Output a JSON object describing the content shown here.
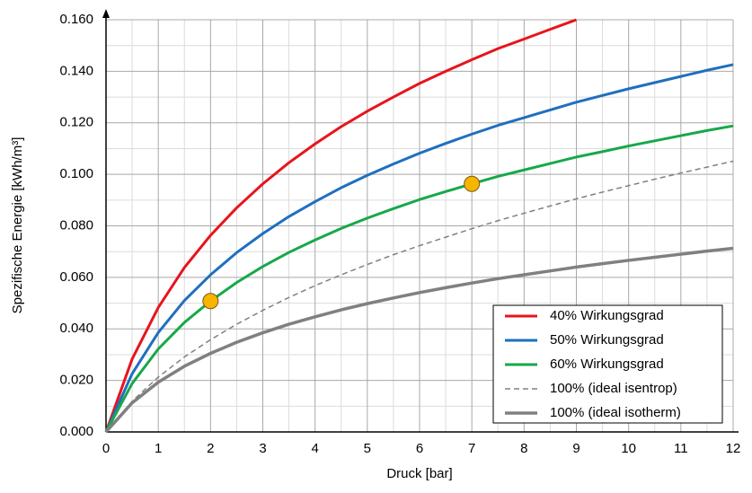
{
  "chart_data": {
    "type": "line",
    "x_label": "Druck [bar]",
    "y_label": "Spezifische Energie [kWh/m³]",
    "x": [
      0,
      0.5,
      1,
      1.5,
      2,
      2.5,
      3,
      3.5,
      4,
      4.5,
      5,
      5.5,
      6,
      6.5,
      7,
      7.5,
      8,
      8.5,
      9,
      9.5,
      10,
      10.5,
      11,
      11.5,
      12
    ],
    "series": [
      {
        "name": "40% Wirkungsgrad",
        "color": "#e8141c",
        "width": 3,
        "dashed": false,
        "values": [
          0,
          0.0283,
          0.0483,
          0.0638,
          0.0763,
          0.087,
          0.0963,
          0.1045,
          0.1118,
          0.1185,
          0.1245,
          0.13,
          0.1353,
          0.14,
          0.1445,
          0.1488,
          0.1525,
          0.1563,
          0.16,
          null,
          null,
          null,
          null,
          null,
          null
        ]
      },
      {
        "name": "50% Wirkungsgrad",
        "color": "#1f6fbf",
        "width": 3,
        "dashed": false,
        "values": [
          0,
          0.0226,
          0.0386,
          0.051,
          0.061,
          0.0696,
          0.077,
          0.0836,
          0.0894,
          0.0948,
          0.0996,
          0.104,
          0.1082,
          0.112,
          0.1156,
          0.119,
          0.122,
          0.125,
          0.128,
          0.1306,
          0.1332,
          0.1356,
          0.138,
          0.1404,
          0.1426
        ]
      },
      {
        "name": "60% Wirkungsgrad",
        "color": "#17a84a",
        "width": 3,
        "dashed": false,
        "values": [
          0,
          0.0188,
          0.0322,
          0.0425,
          0.0508,
          0.058,
          0.0642,
          0.0697,
          0.0745,
          0.079,
          0.083,
          0.0867,
          0.0902,
          0.0933,
          0.0963,
          0.0992,
          0.1017,
          0.1042,
          0.1067,
          0.1088,
          0.111,
          0.113,
          0.115,
          0.117,
          0.1188
        ]
      },
      {
        "name": "100% (ideal isentrop)",
        "color": "#808080",
        "width": 1.5,
        "dashed": true,
        "values": [
          0,
          0.0119,
          0.0213,
          0.0291,
          0.0358,
          0.0418,
          0.0472,
          0.0522,
          0.0568,
          0.061,
          0.065,
          0.0688,
          0.0723,
          0.0756,
          0.0789,
          0.082,
          0.0849,
          0.0877,
          0.0905,
          0.0931,
          0.0956,
          0.0981,
          0.1005,
          0.1028,
          0.1051
        ]
      },
      {
        "name": "100% (ideal isotherm)",
        "color": "#808080",
        "width": 3.5,
        "dashed": false,
        "values": [
          0,
          0.0113,
          0.0193,
          0.0255,
          0.0305,
          0.0348,
          0.0385,
          0.0418,
          0.0447,
          0.0474,
          0.0498,
          0.052,
          0.0541,
          0.056,
          0.0578,
          0.0595,
          0.061,
          0.0625,
          0.064,
          0.0653,
          0.0666,
          0.0678,
          0.069,
          0.0702,
          0.0713
        ]
      }
    ],
    "markers": {
      "x": [
        2,
        7
      ],
      "values": [
        0.0508,
        0.0963
      ],
      "color": "#f7b500"
    },
    "xlim": [
      0,
      12
    ],
    "xticks": [
      0,
      1,
      2,
      3,
      4,
      5,
      6,
      7,
      8,
      9,
      10,
      11,
      12
    ],
    "ylim": [
      0,
      0.16
    ],
    "yticks": [
      {
        "value": 0,
        "label": "0.000"
      },
      {
        "value": 0.02,
        "label": "0.020"
      },
      {
        "value": 0.04,
        "label": "0.040"
      },
      {
        "value": 0.06,
        "label": "0.060"
      },
      {
        "value": 0.08,
        "label": "0.080"
      },
      {
        "value": 0.1,
        "label": "0.100"
      },
      {
        "value": 0.12,
        "label": "0.120"
      },
      {
        "value": 0.14,
        "label": "0.140"
      },
      {
        "value": 0.16,
        "label": "0.160"
      }
    ],
    "grid": true,
    "minor_grid": true,
    "legend": "lower-right"
  }
}
